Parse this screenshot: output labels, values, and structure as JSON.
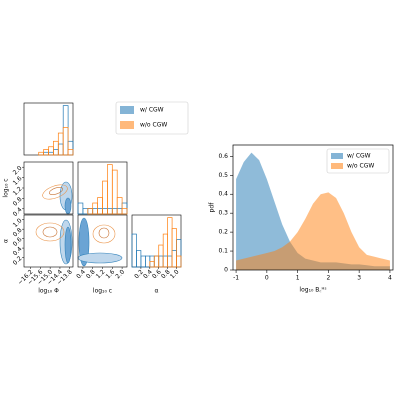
{
  "chart_data": [
    {
      "type": "corner",
      "parameters": [
        {
          "label": "log₁₀ Φ",
          "lim": [
            -16.6,
            -13.6
          ],
          "ticks": [
            {
              "value": -16.2,
              "label": "−16.2"
            },
            {
              "value": -15.6,
              "label": "−15.6"
            },
            {
              "value": -15.0,
              "label": "−15.0"
            },
            {
              "value": -14.4,
              "label": "−14.4"
            },
            {
              "value": -13.8,
              "label": "−13.8"
            }
          ],
          "bins": [
            -16.6,
            -16.3,
            -16.0,
            -15.7,
            -15.4,
            -15.1,
            -14.8,
            -14.5,
            -14.2,
            -13.9,
            -13.6
          ]
        },
        {
          "label": "log₁₀ c",
          "lim": [
            0.2,
            2.2
          ],
          "ticks": [
            0.4,
            0.8,
            1.2,
            1.6,
            {
              "value": 2.0,
              "label": "2.0"
            }
          ],
          "bins": [
            0.2,
            0.4,
            0.6,
            0.8,
            1.0,
            1.2,
            1.4,
            1.6,
            1.8,
            2.0,
            2.2
          ]
        },
        {
          "label": "α",
          "lim": [
            0.0,
            1.1
          ],
          "ticks": [
            0.2,
            0.4,
            0.6,
            0.8,
            {
              "value": 1.0,
              "label": "1.0"
            }
          ],
          "bins": [
            0.0,
            0.1,
            0.2,
            0.3,
            0.4,
            0.5,
            0.6,
            0.7,
            0.8,
            0.9,
            1.0,
            1.1
          ]
        }
      ],
      "series": [
        {
          "name": "w/ CGW",
          "color": "#1f77b4",
          "histograms": [
            [
              0,
              0,
              0,
              0,
              1,
              1,
              2,
              4,
              18,
              5
            ],
            [
              2,
              1,
              1,
              1,
              1,
              1,
              1,
              1,
              1,
              2
            ],
            [
              6,
              3,
              2,
              2,
              2,
              2,
              2,
              2,
              2,
              3,
              5
            ]
          ]
        },
        {
          "name": "w/o CGW",
          "color": "#ff7f0e",
          "histograms": [
            [
              0,
              0,
              0,
              1,
              2,
              3,
              5,
              8,
              10,
              2
            ],
            [
              0,
              0,
              1,
              2,
              3,
              6,
              9,
              8,
              3,
              1
            ],
            [
              0,
              0,
              0,
              0,
              1,
              2,
              4,
              6,
              9,
              7,
              2
            ]
          ]
        }
      ]
    },
    {
      "type": "area",
      "xlabel": "log₁₀ B꜀ᴴˢ",
      "ylabel": "pdf",
      "x": [
        -1,
        -0.75,
        -0.5,
        -0.25,
        0,
        0.25,
        0.5,
        0.75,
        1,
        1.25,
        1.5,
        1.75,
        2,
        2.25,
        2.5,
        2.75,
        3,
        3.25,
        3.5,
        3.75,
        4
      ],
      "series": [
        {
          "name": "w/ CGW",
          "color": "#1f77b4",
          "values": [
            0.48,
            0.57,
            0.62,
            0.58,
            0.48,
            0.36,
            0.24,
            0.15,
            0.09,
            0.06,
            0.05,
            0.04,
            0.04,
            0.04,
            0.035,
            0.03,
            0.03,
            0.025,
            0.02,
            0.02,
            0.02
          ]
        },
        {
          "name": "w/o CGW",
          "color": "#ff7f0e",
          "values": [
            0.05,
            0.06,
            0.07,
            0.08,
            0.09,
            0.1,
            0.12,
            0.15,
            0.2,
            0.27,
            0.35,
            0.4,
            0.41,
            0.38,
            0.3,
            0.2,
            0.12,
            0.08,
            0.07,
            0.06,
            0.05
          ]
        }
      ],
      "xlim": [
        -1.1,
        4.1
      ],
      "ylim": [
        0,
        0.66
      ],
      "xticks": [
        -1,
        0,
        1,
        2,
        3,
        4
      ],
      "yticks": [
        0,
        {
          "value": 0.1,
          "label": "0.1"
        },
        {
          "value": 0.2,
          "label": "0.2"
        },
        {
          "value": 0.3,
          "label": "0.3"
        },
        {
          "value": 0.4,
          "label": "0.4"
        },
        {
          "value": 0.5,
          "label": "0.5"
        },
        {
          "value": 0.6,
          "label": "0.6"
        }
      ],
      "legend": "upper right"
    }
  ]
}
